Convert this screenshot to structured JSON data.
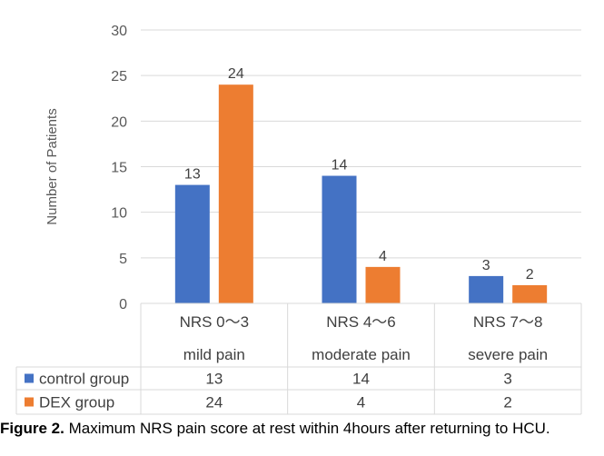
{
  "caption": {
    "label": "Figure 2.",
    "text": "Maximum NRS pain score at rest within 4hours after returning to HCU."
  },
  "chart_data": {
    "type": "bar",
    "categories": [
      "NRS 0～3",
      "NRS 4～6",
      "NRS 7～8"
    ],
    "subcategories": [
      "mild pain",
      "moderate pain",
      "severe pain"
    ],
    "series": [
      {
        "name": "control group",
        "values": [
          13,
          14,
          3
        ],
        "color": "#4472c4"
      },
      {
        "name": "DEX group",
        "values": [
          24,
          4,
          2
        ],
        "color": "#ed7d31"
      }
    ],
    "ylabel": "Number of  Patients",
    "xlabel": "",
    "ylim": [
      0,
      30
    ],
    "yticks": [
      0,
      5,
      10,
      15,
      20,
      25,
      30
    ],
    "grid": true,
    "legend": "data-table"
  }
}
